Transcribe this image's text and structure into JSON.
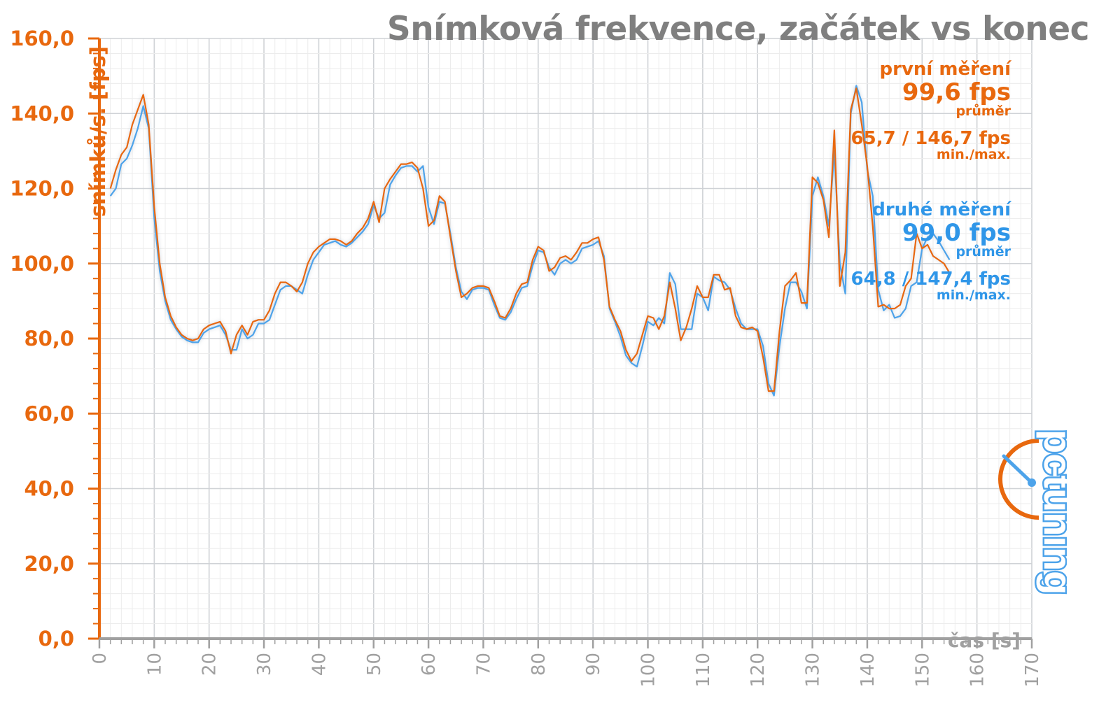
{
  "chart_data": {
    "type": "line",
    "title": "Snímková frekvence, začátek vs konec",
    "ylabel": "snímků/s. [fps]",
    "xlabel": "čas [s]",
    "xlim": [
      0,
      170
    ],
    "ylim": [
      0,
      160
    ],
    "x_ticks": [
      "0",
      "10",
      "20",
      "30",
      "40",
      "50",
      "60",
      "70",
      "80",
      "90",
      "100",
      "110",
      "120",
      "130",
      "140",
      "150",
      "160",
      "170"
    ],
    "y_ticks": [
      "0,0",
      "20,0",
      "40,0",
      "60,0",
      "80,0",
      "100,0",
      "120,0",
      "140,0",
      "160,0"
    ],
    "grid": true,
    "series": [
      {
        "name": "první měření",
        "color": "#e8680e",
        "points": [
          [
            2,
            120
          ],
          [
            3,
            125
          ],
          [
            4,
            129
          ],
          [
            5,
            131
          ],
          [
            6,
            137
          ],
          [
            7,
            141
          ],
          [
            8,
            145
          ],
          [
            9,
            137
          ],
          [
            10,
            115
          ],
          [
            11,
            100
          ],
          [
            12,
            91
          ],
          [
            13,
            86
          ],
          [
            14,
            83
          ],
          [
            15,
            81
          ],
          [
            16,
            80
          ],
          [
            17,
            79.5
          ],
          [
            18,
            80
          ],
          [
            19,
            82.5
          ],
          [
            20,
            83.5
          ],
          [
            21,
            84
          ],
          [
            22,
            84.5
          ],
          [
            23,
            82
          ],
          [
            24,
            76
          ],
          [
            25,
            81
          ],
          [
            26,
            83.5
          ],
          [
            27,
            81
          ],
          [
            28,
            84.5
          ],
          [
            29,
            85
          ],
          [
            30,
            85
          ],
          [
            31,
            87.5
          ],
          [
            32,
            92
          ],
          [
            33,
            95
          ],
          [
            34,
            95
          ],
          [
            35,
            94
          ],
          [
            36,
            92.5
          ],
          [
            37,
            95
          ],
          [
            38,
            100
          ],
          [
            39,
            103
          ],
          [
            40,
            104.5
          ],
          [
            41,
            105.5
          ],
          [
            42,
            106.5
          ],
          [
            43,
            106.5
          ],
          [
            44,
            106
          ],
          [
            45,
            105
          ],
          [
            46,
            106
          ],
          [
            47,
            108
          ],
          [
            48,
            109.5
          ],
          [
            49,
            112
          ],
          [
            50,
            116.5
          ],
          [
            51,
            111
          ],
          [
            52,
            120
          ],
          [
            53,
            122.5
          ],
          [
            54,
            124.5
          ],
          [
            55,
            126.5
          ],
          [
            56,
            126.5
          ],
          [
            57,
            127
          ],
          [
            58,
            125.5
          ],
          [
            59,
            120
          ],
          [
            60,
            110
          ],
          [
            61,
            111.5
          ],
          [
            62,
            118
          ],
          [
            63,
            116.5
          ],
          [
            64,
            107
          ],
          [
            65,
            98
          ],
          [
            66,
            91
          ],
          [
            67,
            92
          ],
          [
            68,
            93.5
          ],
          [
            69,
            94
          ],
          [
            70,
            94
          ],
          [
            71,
            93.5
          ],
          [
            72,
            90
          ],
          [
            73,
            86
          ],
          [
            74,
            85.5
          ],
          [
            75,
            88
          ],
          [
            76,
            92
          ],
          [
            77,
            94.5
          ],
          [
            78,
            95
          ],
          [
            79,
            101
          ],
          [
            80,
            104.5
          ],
          [
            81,
            103.5
          ],
          [
            82,
            98
          ],
          [
            83,
            99
          ],
          [
            84,
            101.5
          ],
          [
            85,
            102
          ],
          [
            86,
            101
          ],
          [
            87,
            103
          ],
          [
            88,
            105.5
          ],
          [
            89,
            105.5
          ],
          [
            90,
            106.5
          ],
          [
            91,
            107
          ],
          [
            92,
            101
          ],
          [
            93,
            88.5
          ],
          [
            94,
            85
          ],
          [
            95,
            82
          ],
          [
            96,
            77
          ],
          [
            97,
            74
          ],
          [
            98,
            76
          ],
          [
            99,
            81
          ],
          [
            100,
            86
          ],
          [
            101,
            85.5
          ],
          [
            102,
            82.5
          ],
          [
            103,
            86
          ],
          [
            104,
            95
          ],
          [
            105,
            88
          ],
          [
            106,
            79.5
          ],
          [
            107,
            83
          ],
          [
            108,
            88
          ],
          [
            109,
            94
          ],
          [
            110,
            91
          ],
          [
            111,
            91
          ],
          [
            112,
            97
          ],
          [
            113,
            97
          ],
          [
            114,
            93
          ],
          [
            115,
            93.5
          ],
          [
            116,
            86
          ],
          [
            117,
            83
          ],
          [
            118,
            82.5
          ],
          [
            119,
            83
          ],
          [
            120,
            82
          ],
          [
            121,
            75
          ],
          [
            122,
            66
          ],
          [
            123,
            66
          ],
          [
            124,
            82
          ],
          [
            125,
            94
          ],
          [
            126,
            95.5
          ],
          [
            127,
            97.5
          ],
          [
            128,
            89.5
          ],
          [
            129,
            89.5
          ],
          [
            130,
            123
          ],
          [
            131,
            121.5
          ],
          [
            132,
            117
          ],
          [
            133,
            107
          ],
          [
            134,
            135.5
          ],
          [
            135,
            94
          ],
          [
            136,
            103
          ],
          [
            137,
            141
          ],
          [
            138,
            146.7
          ],
          [
            139,
            137
          ],
          [
            140,
            126
          ],
          [
            141,
            110
          ],
          [
            142,
            88.5
          ],
          [
            143,
            89
          ],
          [
            144,
            88
          ],
          [
            145,
            88
          ],
          [
            146,
            89
          ],
          [
            147,
            94
          ],
          [
            148,
            96
          ],
          [
            149,
            108
          ],
          [
            150,
            104
          ],
          [
            151,
            105
          ],
          [
            152,
            102
          ],
          [
            153,
            101
          ],
          [
            154,
            100
          ],
          [
            155,
            97.5
          ]
        ]
      },
      {
        "name": "druhé měření",
        "color": "#4da3ea",
        "points": [
          [
            2,
            118
          ],
          [
            3,
            120
          ],
          [
            4,
            126.5
          ],
          [
            5,
            128
          ],
          [
            6,
            131.5
          ],
          [
            7,
            136
          ],
          [
            8,
            142
          ],
          [
            9,
            136
          ],
          [
            10,
            112
          ],
          [
            11,
            98
          ],
          [
            12,
            90
          ],
          [
            13,
            85
          ],
          [
            14,
            82.5
          ],
          [
            15,
            80.5
          ],
          [
            16,
            79.5
          ],
          [
            17,
            79
          ],
          [
            18,
            79
          ],
          [
            19,
            81.5
          ],
          [
            20,
            82.5
          ],
          [
            21,
            83
          ],
          [
            22,
            83.5
          ],
          [
            23,
            81
          ],
          [
            24,
            77
          ],
          [
            25,
            77
          ],
          [
            26,
            82.5
          ],
          [
            27,
            80
          ],
          [
            28,
            81
          ],
          [
            29,
            84
          ],
          [
            30,
            84
          ],
          [
            31,
            85
          ],
          [
            32,
            89
          ],
          [
            33,
            93
          ],
          [
            34,
            94
          ],
          [
            35,
            94
          ],
          [
            36,
            93
          ],
          [
            37,
            92
          ],
          [
            38,
            97
          ],
          [
            39,
            101
          ],
          [
            40,
            103
          ],
          [
            41,
            105
          ],
          [
            42,
            105.5
          ],
          [
            43,
            106
          ],
          [
            44,
            105
          ],
          [
            45,
            104.5
          ],
          [
            46,
            105.5
          ],
          [
            47,
            107
          ],
          [
            48,
            108.5
          ],
          [
            49,
            110.5
          ],
          [
            50,
            115.5
          ],
          [
            51,
            112
          ],
          [
            52,
            113.5
          ],
          [
            53,
            121
          ],
          [
            54,
            123.5
          ],
          [
            55,
            125.5
          ],
          [
            56,
            126
          ],
          [
            57,
            126
          ],
          [
            58,
            124.5
          ],
          [
            59,
            126
          ],
          [
            60,
            115
          ],
          [
            61,
            110.5
          ],
          [
            62,
            116.5
          ],
          [
            63,
            116
          ],
          [
            64,
            108
          ],
          [
            65,
            99
          ],
          [
            66,
            92.5
          ],
          [
            67,
            90.5
          ],
          [
            68,
            93
          ],
          [
            69,
            93.5
          ],
          [
            70,
            93.5
          ],
          [
            71,
            93
          ],
          [
            72,
            89
          ],
          [
            73,
            85.5
          ],
          [
            74,
            85
          ],
          [
            75,
            87
          ],
          [
            76,
            90.5
          ],
          [
            77,
            93.5
          ],
          [
            78,
            94
          ],
          [
            79,
            99.5
          ],
          [
            80,
            103.5
          ],
          [
            81,
            103
          ],
          [
            82,
            99
          ],
          [
            83,
            97
          ],
          [
            84,
            100
          ],
          [
            85,
            101
          ],
          [
            86,
            100
          ],
          [
            87,
            101
          ],
          [
            88,
            104
          ],
          [
            89,
            104.5
          ],
          [
            90,
            105
          ],
          [
            91,
            106
          ],
          [
            92,
            102
          ],
          [
            93,
            88
          ],
          [
            94,
            84.5
          ],
          [
            95,
            80.5
          ],
          [
            96,
            75.5
          ],
          [
            97,
            73.5
          ],
          [
            98,
            72.5
          ],
          [
            99,
            78
          ],
          [
            100,
            84.5
          ],
          [
            101,
            83.5
          ],
          [
            102,
            85.5
          ],
          [
            103,
            84
          ],
          [
            104,
            97.5
          ],
          [
            105,
            94.5
          ],
          [
            106,
            82.5
          ],
          [
            107,
            82.5
          ],
          [
            108,
            82.5
          ],
          [
            109,
            92
          ],
          [
            110,
            91
          ],
          [
            111,
            87.5
          ],
          [
            112,
            96.5
          ],
          [
            113,
            95.5
          ],
          [
            114,
            95
          ],
          [
            115,
            93
          ],
          [
            116,
            88
          ],
          [
            117,
            84
          ],
          [
            118,
            82.5
          ],
          [
            119,
            82.5
          ],
          [
            120,
            82.5
          ],
          [
            121,
            78
          ],
          [
            122,
            68
          ],
          [
            123,
            64.8
          ],
          [
            124,
            78
          ],
          [
            125,
            88
          ],
          [
            126,
            95
          ],
          [
            127,
            95
          ],
          [
            128,
            92.5
          ],
          [
            129,
            88
          ],
          [
            130,
            118
          ],
          [
            131,
            123
          ],
          [
            132,
            118
          ],
          [
            133,
            110
          ],
          [
            134,
            130
          ],
          [
            135,
            100
          ],
          [
            136,
            92
          ],
          [
            137,
            140
          ],
          [
            138,
            147.4
          ],
          [
            139,
            143
          ],
          [
            140,
            125
          ],
          [
            141,
            118
          ],
          [
            142,
            93
          ],
          [
            143,
            87.5
          ],
          [
            144,
            89
          ],
          [
            145,
            85.5
          ],
          [
            146,
            86
          ],
          [
            147,
            88
          ],
          [
            148,
            94
          ],
          [
            149,
            95
          ],
          [
            150,
            104
          ],
          [
            151,
            107
          ],
          [
            152,
            108
          ],
          [
            153,
            106
          ],
          [
            154,
            103.5
          ],
          [
            155,
            101
          ]
        ]
      }
    ],
    "annotations": {
      "first": {
        "label": "první měření",
        "avg": "99,6 fps",
        "avg_label": "průměr",
        "minmax": "65,7 / 146,7 fps",
        "minmax_label": "min./max."
      },
      "second": {
        "label": "druhé měření",
        "avg": "99,0 fps",
        "avg_label": "průměr",
        "minmax": "64,8 / 147,4 fps",
        "minmax_label": "min./max."
      }
    }
  },
  "logo": {
    "text": "pctuning"
  }
}
